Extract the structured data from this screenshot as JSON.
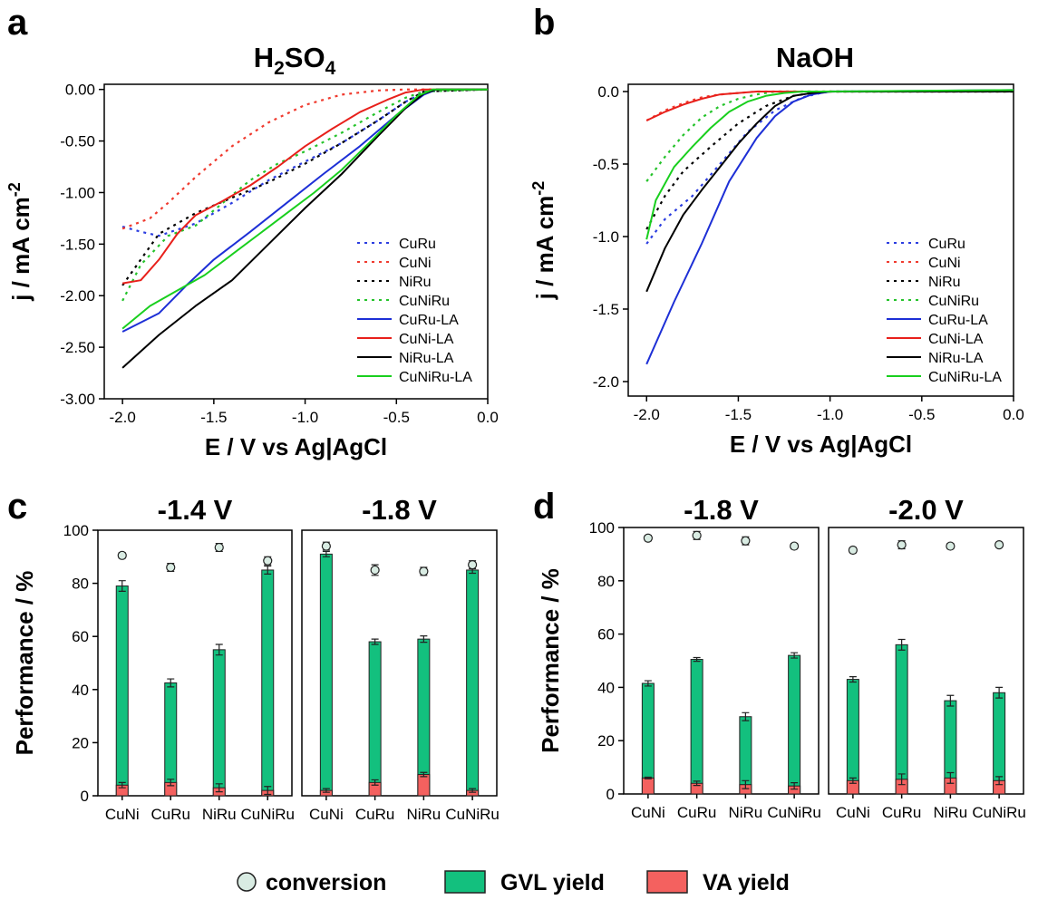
{
  "legend_bottom": {
    "conversion": "conversion",
    "gvl": "GVL yield",
    "va": "VA yield",
    "colors": {
      "conversion_fill": "#d9ece3",
      "gvl": "#13c07e",
      "va": "#f4615f"
    }
  },
  "chart_data": [
    {
      "panel": "a",
      "type": "line",
      "title": "H₂SO₄",
      "xlabel": "E / V vs Ag|AgCl",
      "ylabel": "j / mA cm⁻²",
      "xlim": [
        -2.1,
        0.0
      ],
      "ylim": [
        -3.0,
        0.05
      ],
      "xticks": [
        -2.0,
        -1.5,
        -1.0,
        -0.5,
        0.0
      ],
      "xtick_labels": [
        "-2.0",
        "-1.5",
        "-1.0",
        "-0.5",
        "0.0"
      ],
      "yticks": [
        0,
        -0.5,
        -1.0,
        -1.5,
        -2.0,
        -2.5,
        -3.0
      ],
      "ytick_labels": [
        "0.00",
        "-0.50",
        "-1.00",
        "-1.50",
        "-2.00",
        "-2.50",
        "-3.00"
      ],
      "legend_position": "bottom-right",
      "series": [
        {
          "name": "CuRu",
          "color": "#2b3de0",
          "dash": true,
          "x": [
            -2.0,
            -1.9,
            -1.8,
            -1.6,
            -1.4,
            -1.2,
            -1.0,
            -0.8,
            -0.6,
            -0.45,
            -0.35,
            -0.3,
            0.0
          ],
          "y": [
            -1.33,
            -1.38,
            -1.42,
            -1.3,
            -1.1,
            -0.88,
            -0.7,
            -0.52,
            -0.3,
            -0.12,
            -0.03,
            -0.01,
            0.0
          ]
        },
        {
          "name": "CuNi",
          "color": "#f03a2e",
          "dash": true,
          "x": [
            -2.0,
            -1.85,
            -1.75,
            -1.6,
            -1.4,
            -1.2,
            -1.0,
            -0.8,
            -0.6,
            -0.45,
            0.0
          ],
          "y": [
            -1.35,
            -1.25,
            -1.1,
            -0.85,
            -0.55,
            -0.32,
            -0.15,
            -0.05,
            -0.01,
            0.0,
            0.0
          ]
        },
        {
          "name": "NiRu",
          "color": "#000000",
          "dash": true,
          "x": [
            -2.0,
            -1.9,
            -1.8,
            -1.6,
            -1.4,
            -1.2,
            -1.0,
            -0.8,
            -0.6,
            -0.45,
            -0.35,
            0.0
          ],
          "y": [
            -1.9,
            -1.65,
            -1.4,
            -1.2,
            -1.05,
            -0.9,
            -0.72,
            -0.52,
            -0.3,
            -0.12,
            -0.02,
            0.0
          ]
        },
        {
          "name": "CuNiRu",
          "color": "#25c32b",
          "dash": true,
          "x": [
            -2.0,
            -1.9,
            -1.75,
            -1.6,
            -1.45,
            -1.3,
            -1.15,
            -1.0,
            -0.8,
            -0.6,
            -0.45,
            -0.35,
            0.0
          ],
          "y": [
            -2.05,
            -1.7,
            -1.42,
            -1.32,
            -1.1,
            -0.88,
            -0.72,
            -0.6,
            -0.42,
            -0.22,
            -0.08,
            -0.02,
            0.0
          ]
        },
        {
          "name": "CuRu-LA",
          "color": "#1d2fd6",
          "dash": false,
          "x": [
            -2.0,
            -1.8,
            -1.65,
            -1.5,
            -1.3,
            -1.1,
            -0.9,
            -0.7,
            -0.5,
            -0.35,
            -0.28,
            0.0
          ],
          "y": [
            -2.35,
            -2.17,
            -1.9,
            -1.65,
            -1.38,
            -1.1,
            -0.82,
            -0.55,
            -0.25,
            -0.05,
            0.0,
            0.0
          ]
        },
        {
          "name": "CuNi-LA",
          "color": "#e8201b",
          "dash": false,
          "x": [
            -2.0,
            -1.9,
            -1.8,
            -1.7,
            -1.6,
            -1.45,
            -1.3,
            -1.15,
            -1.0,
            -0.85,
            -0.7,
            -0.55,
            -0.45,
            -0.35,
            0.0
          ],
          "y": [
            -1.88,
            -1.85,
            -1.65,
            -1.4,
            -1.22,
            -1.08,
            -0.93,
            -0.75,
            -0.55,
            -0.38,
            -0.22,
            -0.1,
            -0.03,
            0.0,
            0.0
          ]
        },
        {
          "name": "NiRu-LA",
          "color": "#000000",
          "dash": false,
          "x": [
            -2.0,
            -1.8,
            -1.6,
            -1.4,
            -1.2,
            -1.0,
            -0.8,
            -0.6,
            -0.45,
            -0.35,
            -0.28,
            0.0
          ],
          "y": [
            -2.7,
            -2.38,
            -2.1,
            -1.85,
            -1.5,
            -1.15,
            -0.82,
            -0.45,
            -0.18,
            -0.04,
            0.0,
            0.0
          ]
        },
        {
          "name": "CuNiRu-LA",
          "color": "#19cf1e",
          "dash": false,
          "x": [
            -2.0,
            -1.85,
            -1.7,
            -1.55,
            -1.4,
            -1.25,
            -1.1,
            -0.95,
            -0.8,
            -0.65,
            -0.5,
            -0.38,
            -0.3,
            0.0
          ],
          "y": [
            -2.32,
            -2.1,
            -1.95,
            -1.8,
            -1.6,
            -1.4,
            -1.2,
            -1.0,
            -0.78,
            -0.52,
            -0.25,
            -0.06,
            0.0,
            0.0
          ]
        }
      ]
    },
    {
      "panel": "b",
      "type": "line",
      "title": "NaOH",
      "xlabel": "E / V vs Ag|AgCl",
      "ylabel": "j / mA cm⁻²",
      "xlim": [
        -2.1,
        0.0
      ],
      "ylim": [
        -2.1,
        0.05
      ],
      "xticks": [
        -2.0,
        -1.5,
        -1.0,
        -0.5,
        0.0
      ],
      "xtick_labels": [
        "-2.0",
        "-1.5",
        "-1.0",
        "-0.5",
        "0.0"
      ],
      "yticks": [
        0,
        -0.5,
        -1.0,
        -1.5,
        -2.0
      ],
      "ytick_labels": [
        "0.0",
        "-0.5",
        "-1.0",
        "-1.5",
        "-2.0"
      ],
      "legend_position": "bottom-right",
      "series": [
        {
          "name": "CuRu",
          "color": "#2b3de0",
          "dash": true,
          "x": [
            -2.0,
            -1.9,
            -1.75,
            -1.6,
            -1.45,
            -1.3,
            -1.15,
            -1.05,
            -1.0,
            0.0
          ],
          "y": [
            -1.05,
            -0.88,
            -0.72,
            -0.5,
            -0.28,
            -0.13,
            -0.04,
            -0.01,
            0.0,
            0.0
          ]
        },
        {
          "name": "CuNi",
          "color": "#f03a2e",
          "dash": true,
          "x": [
            -2.0,
            -1.9,
            -1.8,
            -1.7,
            -1.6,
            -1.5,
            -1.4,
            -1.3,
            0.0
          ],
          "y": [
            -0.2,
            -0.13,
            -0.08,
            -0.04,
            -0.02,
            -0.01,
            0.0,
            0.0,
            0.0
          ]
        },
        {
          "name": "NiRu",
          "color": "#000000",
          "dash": true,
          "x": [
            -2.0,
            -1.9,
            -1.8,
            -1.65,
            -1.5,
            -1.35,
            -1.2,
            -1.1,
            -1.0,
            0.0
          ],
          "y": [
            -0.95,
            -0.72,
            -0.55,
            -0.38,
            -0.22,
            -0.1,
            -0.03,
            -0.01,
            0.0,
            0.0
          ]
        },
        {
          "name": "CuNiRu",
          "color": "#25c32b",
          "dash": true,
          "x": [
            -2.0,
            -1.9,
            -1.8,
            -1.7,
            -1.6,
            -1.5,
            -1.4,
            -1.3,
            -1.2,
            0.0
          ],
          "y": [
            -0.62,
            -0.45,
            -0.3,
            -0.18,
            -0.1,
            -0.05,
            -0.02,
            0.0,
            0.0,
            0.0
          ]
        },
        {
          "name": "CuRu-LA",
          "color": "#1d2fd6",
          "dash": false,
          "x": [
            -2.0,
            -1.85,
            -1.7,
            -1.55,
            -1.4,
            -1.3,
            -1.2,
            -1.1,
            -1.05,
            -1.0,
            0.0
          ],
          "y": [
            -1.88,
            -1.45,
            -1.05,
            -0.62,
            -0.32,
            -0.17,
            -0.07,
            -0.02,
            -0.01,
            0.0,
            0.01
          ]
        },
        {
          "name": "CuNi-LA",
          "color": "#e8201b",
          "dash": false,
          "x": [
            -2.0,
            -1.9,
            -1.8,
            -1.7,
            -1.6,
            -1.5,
            -1.4,
            -1.3,
            0.0
          ],
          "y": [
            -0.2,
            -0.14,
            -0.09,
            -0.05,
            -0.02,
            -0.01,
            0.0,
            0.0,
            0.0
          ]
        },
        {
          "name": "NiRu-LA",
          "color": "#000000",
          "dash": false,
          "x": [
            -2.0,
            -1.9,
            -1.8,
            -1.7,
            -1.6,
            -1.5,
            -1.4,
            -1.3,
            -1.2,
            -1.1,
            -1.0,
            0.0
          ],
          "y": [
            -1.38,
            -1.08,
            -0.85,
            -0.68,
            -0.52,
            -0.36,
            -0.22,
            -0.1,
            -0.03,
            -0.01,
            0.0,
            0.0
          ]
        },
        {
          "name": "CuNiRu-LA",
          "color": "#19cf1e",
          "dash": false,
          "x": [
            -2.0,
            -1.95,
            -1.85,
            -1.75,
            -1.65,
            -1.55,
            -1.45,
            -1.35,
            -1.25,
            -1.15,
            -1.05,
            0.0
          ],
          "y": [
            -1.02,
            -0.75,
            -0.52,
            -0.38,
            -0.25,
            -0.14,
            -0.07,
            -0.03,
            -0.01,
            0.0,
            0.0,
            0.01
          ]
        }
      ]
    },
    {
      "panel": "c",
      "type": "bar",
      "ylabel": "Performance / %",
      "ylim": [
        0,
        100
      ],
      "yticks": [
        0,
        20,
        40,
        60,
        80,
        100
      ],
      "subplots": [
        {
          "title": "-1.4 V",
          "categories": [
            "CuNi",
            "CuRu",
            "NiRu",
            "CuNiRu"
          ],
          "gvl": [
            79,
            42.5,
            55,
            85
          ],
          "gvl_err": [
            2,
            1.5,
            2,
            1.5
          ],
          "va": [
            4,
            5,
            3,
            2
          ],
          "va_err": [
            1,
            1.2,
            1.5,
            1.5
          ],
          "conversion": [
            90.5,
            86,
            93.5,
            88.5
          ],
          "conversion_err": [
            1,
            1.5,
            1.5,
            1.5
          ]
        },
        {
          "title": "-1.8 V",
          "categories": [
            "CuNi",
            "CuRu",
            "NiRu",
            "CuNiRu"
          ],
          "gvl": [
            91,
            58,
            59,
            85
          ],
          "gvl_err": [
            1,
            1,
            1.2,
            1.2
          ],
          "va": [
            2,
            5,
            8,
            2
          ],
          "va_err": [
            0.7,
            1,
            0.8,
            0.7
          ],
          "conversion": [
            94,
            85,
            84.5,
            87
          ],
          "conversion_err": [
            1.5,
            2,
            1.5,
            1.5
          ]
        }
      ]
    },
    {
      "panel": "d",
      "type": "bar",
      "ylabel": "Performance / %",
      "ylim": [
        0,
        100
      ],
      "yticks": [
        0,
        20,
        40,
        60,
        80,
        100
      ],
      "subplots": [
        {
          "title": "-1.8 V",
          "categories": [
            "CuNi",
            "CuRu",
            "NiRu",
            "CuNiRu"
          ],
          "gvl": [
            41.5,
            50.5,
            29,
            52
          ],
          "gvl_err": [
            1,
            0.7,
            1.5,
            1
          ],
          "va": [
            6,
            4,
            3.5,
            3
          ],
          "va_err": [
            0.3,
            0.8,
            1.5,
            1.2
          ],
          "conversion": [
            96,
            97,
            95,
            93
          ],
          "conversion_err": [
            1,
            1.5,
            1.5,
            1
          ]
        },
        {
          "title": "-2.0 V",
          "categories": [
            "CuNi",
            "CuRu",
            "NiRu",
            "CuNiRu"
          ],
          "gvl": [
            43,
            56,
            35,
            38
          ],
          "gvl_err": [
            1,
            2,
            2,
            2
          ],
          "va": [
            5,
            5.5,
            6,
            5
          ],
          "va_err": [
            1,
            2,
            2,
            1.5
          ],
          "conversion": [
            91.5,
            93.5,
            93,
            93.5
          ],
          "conversion_err": [
            1,
            1.5,
            1,
            0.8
          ]
        }
      ]
    }
  ]
}
